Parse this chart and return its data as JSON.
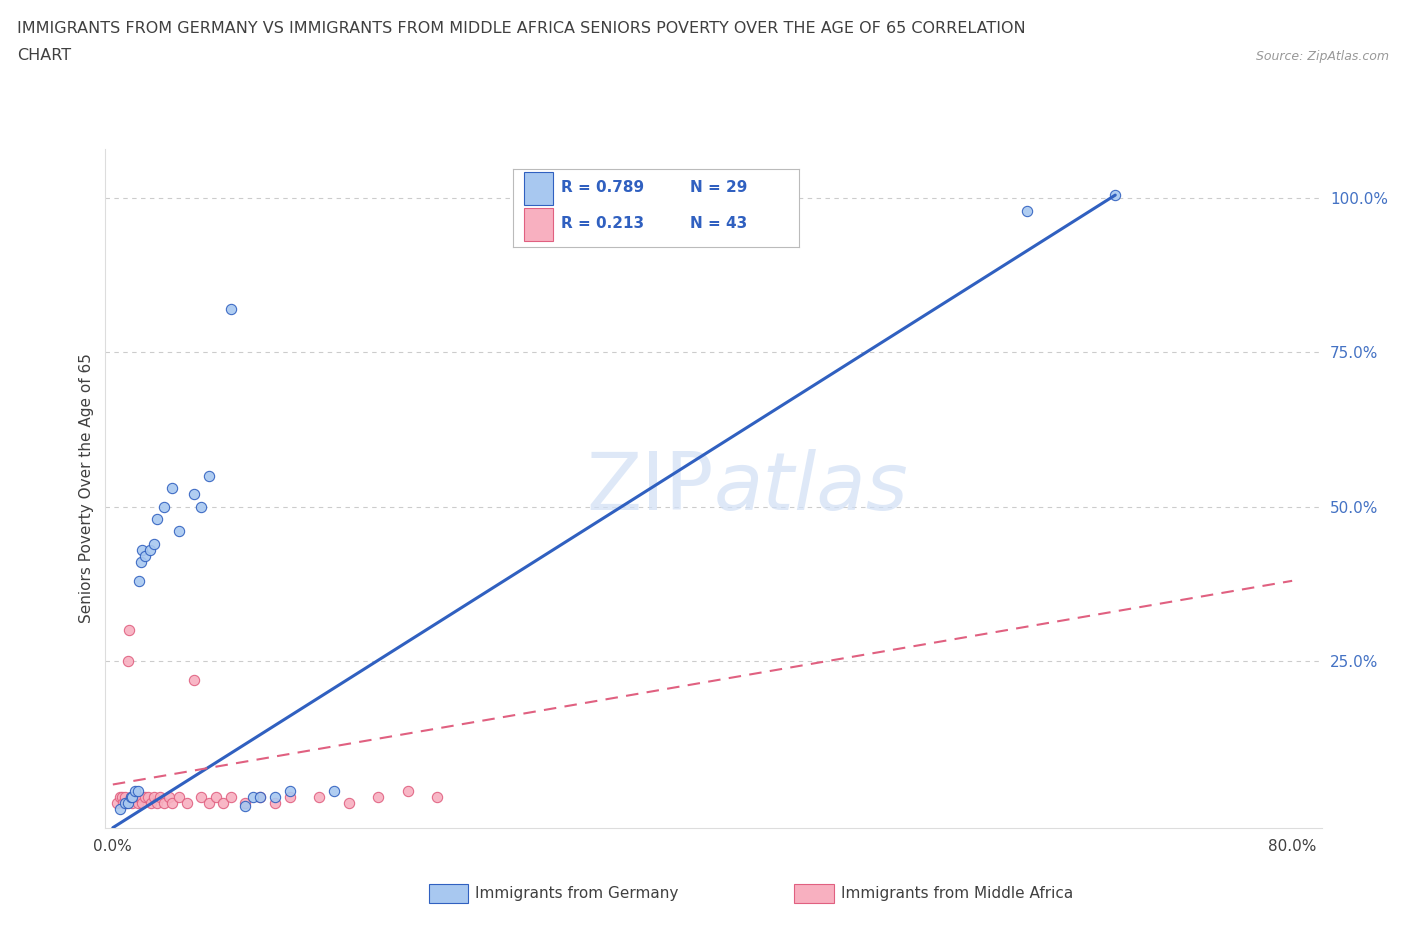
{
  "title_line1": "IMMIGRANTS FROM GERMANY VS IMMIGRANTS FROM MIDDLE AFRICA SENIORS POVERTY OVER THE AGE OF 65 CORRELATION",
  "title_line2": "CHART",
  "source": "Source: ZipAtlas.com",
  "ylabel": "Seniors Poverty Over the Age of 65",
  "watermark": "ZIPatlas",
  "r_germany": 0.789,
  "n_germany": 29,
  "r_middle_africa": 0.213,
  "n_middle_africa": 43,
  "germany_color": "#a8c8f0",
  "middle_africa_color": "#f8b0c0",
  "germany_line_color": "#3060c0",
  "middle_africa_line_color": "#e06080",
  "xlim": [
    -0.005,
    0.82
  ],
  "ylim": [
    -0.02,
    1.08
  ],
  "xticks": [
    0.0,
    0.2,
    0.4,
    0.6,
    0.8
  ],
  "xtick_labels": [
    "0.0%",
    "",
    "",
    "",
    "80.0%"
  ],
  "right_yticks": [
    0.0,
    0.25,
    0.5,
    0.75,
    1.0
  ],
  "right_ytick_labels": [
    "",
    "25.0%",
    "50.0%",
    "75.0%",
    "100.0%"
  ],
  "germany_x": [
    0.005,
    0.008,
    0.01,
    0.012,
    0.013,
    0.015,
    0.017,
    0.018,
    0.019,
    0.02,
    0.022,
    0.025,
    0.028,
    0.03,
    0.035,
    0.04,
    0.045,
    0.055,
    0.06,
    0.065,
    0.08,
    0.09,
    0.095,
    0.1,
    0.11,
    0.12,
    0.15,
    0.62,
    0.68
  ],
  "germany_y": [
    0.01,
    0.02,
    0.02,
    0.03,
    0.03,
    0.04,
    0.04,
    0.38,
    0.41,
    0.43,
    0.42,
    0.43,
    0.44,
    0.48,
    0.5,
    0.53,
    0.46,
    0.52,
    0.5,
    0.55,
    0.82,
    0.015,
    0.03,
    0.03,
    0.03,
    0.04,
    0.04,
    0.98,
    1.005
  ],
  "middle_africa_x": [
    0.003,
    0.005,
    0.006,
    0.007,
    0.008,
    0.009,
    0.01,
    0.011,
    0.012,
    0.013,
    0.014,
    0.015,
    0.016,
    0.017,
    0.018,
    0.019,
    0.02,
    0.022,
    0.024,
    0.026,
    0.028,
    0.03,
    0.032,
    0.035,
    0.038,
    0.04,
    0.045,
    0.05,
    0.055,
    0.06,
    0.065,
    0.07,
    0.075,
    0.08,
    0.09,
    0.1,
    0.11,
    0.12,
    0.14,
    0.16,
    0.18,
    0.2,
    0.22
  ],
  "middle_africa_y": [
    0.02,
    0.03,
    0.03,
    0.02,
    0.03,
    0.02,
    0.25,
    0.3,
    0.03,
    0.02,
    0.03,
    0.03,
    0.03,
    0.02,
    0.03,
    0.03,
    0.02,
    0.03,
    0.03,
    0.02,
    0.03,
    0.02,
    0.03,
    0.02,
    0.03,
    0.02,
    0.03,
    0.02,
    0.22,
    0.03,
    0.02,
    0.03,
    0.02,
    0.03,
    0.02,
    0.03,
    0.02,
    0.03,
    0.03,
    0.02,
    0.03,
    0.04,
    0.03
  ],
  "germany_line_x0": 0.0,
  "germany_line_y0": -0.02,
  "germany_line_x1": 0.68,
  "germany_line_y1": 1.005,
  "middle_africa_line_x0": 0.0,
  "middle_africa_line_y0": 0.05,
  "middle_africa_line_x1": 0.8,
  "middle_africa_line_y1": 0.38,
  "background_color": "#ffffff",
  "grid_color": "#cccccc",
  "title_color": "#404040",
  "label_color": "#404040"
}
